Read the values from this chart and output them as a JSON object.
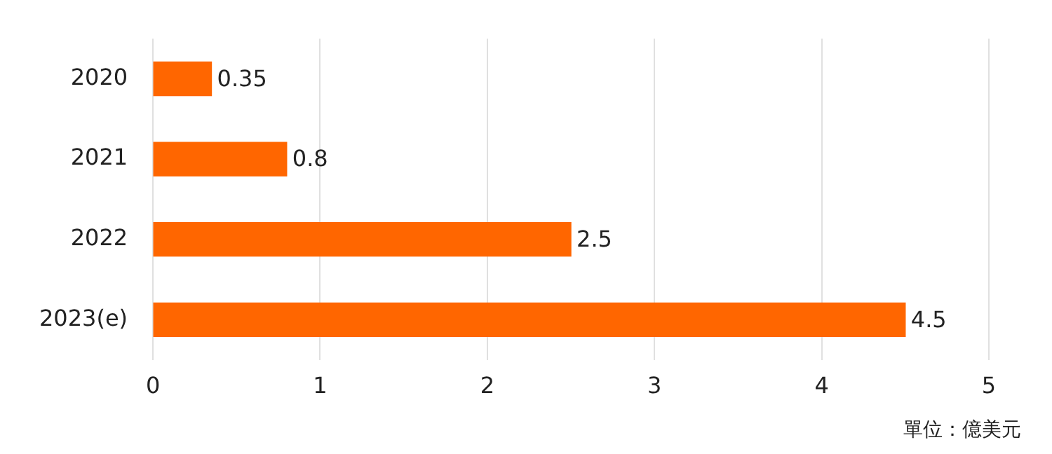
{
  "chart_data": {
    "type": "bar",
    "orientation": "horizontal",
    "categories": [
      "2020",
      "2021",
      "2022",
      "2023(e)"
    ],
    "values": [
      0.35,
      0.8,
      2.5,
      4.5
    ],
    "color": "#ff6600",
    "xlim": [
      0,
      5
    ],
    "xticks": [
      0,
      1,
      2,
      3,
      4,
      5
    ],
    "grid": "x",
    "legend": false,
    "data_labels": true,
    "annotations": [
      "單位：億美元"
    ]
  }
}
